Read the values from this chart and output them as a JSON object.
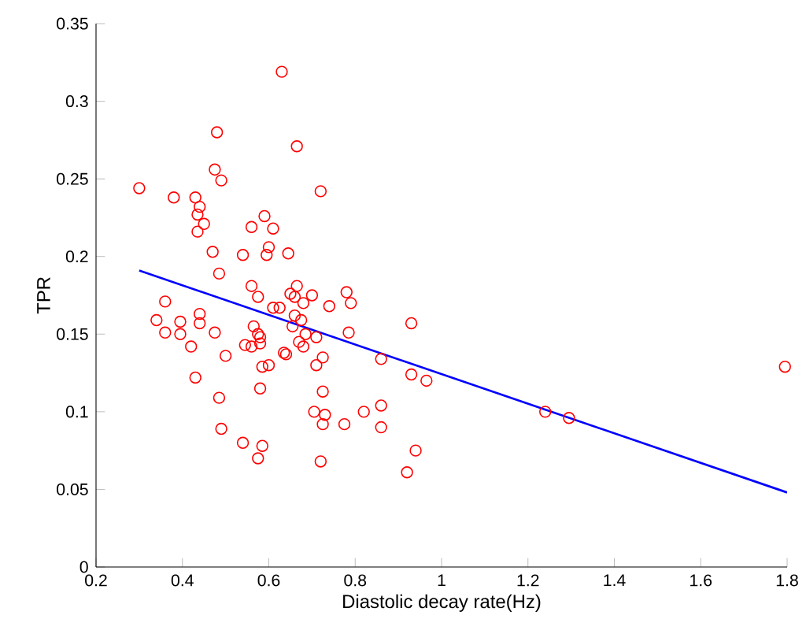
{
  "chart_data": {
    "type": "scatter",
    "xlabel": "Diastolic decay rate(Hz)",
    "ylabel": "TPR",
    "xlim": [
      0.2,
      1.8
    ],
    "ylim": [
      0,
      0.35
    ],
    "xticks": [
      0.2,
      0.4,
      0.6,
      0.8,
      1,
      1.2,
      1.4,
      1.6,
      1.8
    ],
    "yticks": [
      0,
      0.05,
      0.1,
      0.15,
      0.2,
      0.25,
      0.3,
      0.35
    ],
    "grid": false,
    "series": [
      {
        "marker": "circle",
        "color": "#ff0000",
        "x": [
          0.3,
          0.38,
          0.48,
          0.475,
          0.49,
          0.43,
          0.44,
          0.435,
          0.45,
          0.435,
          0.63,
          0.665,
          0.72,
          0.59,
          0.56,
          0.61,
          0.47,
          0.54,
          0.6,
          0.595,
          0.645,
          0.485,
          0.56,
          0.665,
          0.575,
          0.65,
          0.66,
          0.7,
          0.78,
          0.68,
          0.74,
          0.79,
          0.61,
          0.625,
          0.34,
          0.36,
          0.36,
          0.395,
          0.395,
          0.42,
          0.44,
          0.44,
          0.475,
          0.43,
          0.66,
          0.675,
          0.655,
          0.685,
          0.67,
          0.68,
          0.565,
          0.575,
          0.58,
          0.58,
          0.545,
          0.56,
          0.5,
          0.635,
          0.64,
          0.71,
          0.785,
          0.725,
          0.71,
          0.585,
          0.6,
          0.58,
          0.86,
          0.93,
          0.93,
          0.965,
          0.485,
          0.49,
          0.54,
          0.575,
          0.585,
          0.725,
          0.705,
          0.73,
          0.725,
          0.775,
          0.82,
          0.86,
          0.86,
          0.72,
          0.92,
          0.94,
          1.24,
          1.295,
          1.795
        ],
        "values": [
          0.244,
          0.238,
          0.28,
          0.256,
          0.249,
          0.238,
          0.232,
          0.227,
          0.221,
          0.216,
          0.319,
          0.271,
          0.242,
          0.226,
          0.219,
          0.218,
          0.203,
          0.201,
          0.206,
          0.201,
          0.202,
          0.189,
          0.181,
          0.181,
          0.174,
          0.176,
          0.174,
          0.175,
          0.177,
          0.17,
          0.168,
          0.17,
          0.167,
          0.167,
          0.159,
          0.171,
          0.151,
          0.158,
          0.15,
          0.142,
          0.163,
          0.157,
          0.151,
          0.122,
          0.162,
          0.159,
          0.155,
          0.15,
          0.145,
          0.142,
          0.155,
          0.15,
          0.148,
          0.144,
          0.143,
          0.142,
          0.136,
          0.138,
          0.137,
          0.148,
          0.151,
          0.135,
          0.13,
          0.129,
          0.13,
          0.115,
          0.134,
          0.157,
          0.124,
          0.12,
          0.109,
          0.089,
          0.08,
          0.07,
          0.078,
          0.113,
          0.1,
          0.098,
          0.092,
          0.092,
          0.1,
          0.104,
          0.09,
          0.068,
          0.061,
          0.075,
          0.1,
          0.096,
          0.129
        ]
      },
      {
        "type": "line",
        "marker": "none",
        "color": "#0000ff",
        "x": [
          0.3,
          1.8
        ],
        "values": [
          0.191,
          0.048
        ]
      }
    ]
  }
}
